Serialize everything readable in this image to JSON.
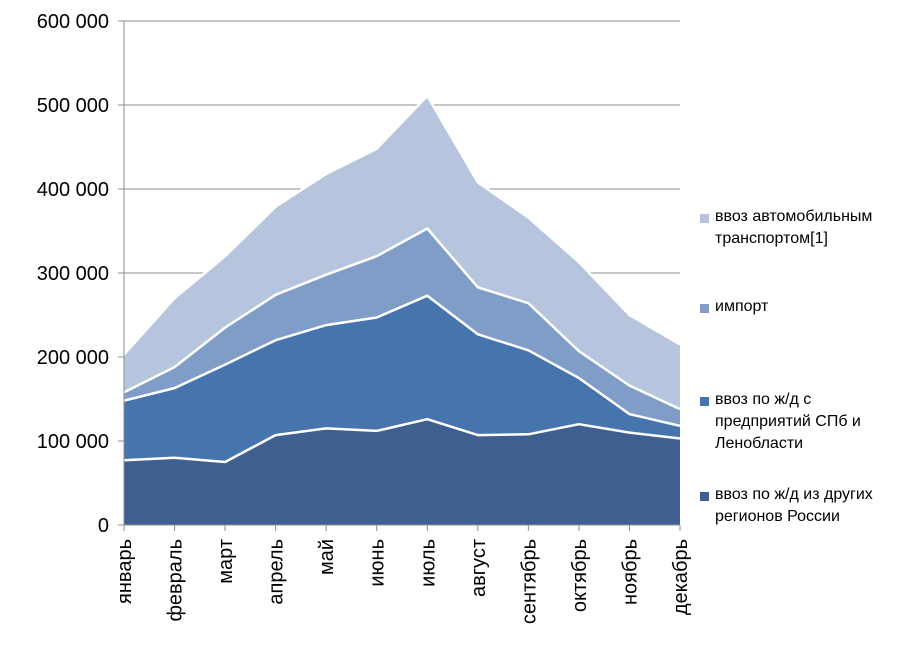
{
  "chart_data": {
    "type": "area",
    "stacked": true,
    "categories": [
      "январь",
      "февраль",
      "март",
      "апрель",
      "май",
      "июнь",
      "июль",
      "август",
      "сентябрь",
      "октябрь",
      "ноябрь",
      "декабрь"
    ],
    "ylim": [
      0,
      600000
    ],
    "yticks": [
      "0",
      "100 000",
      "200 000",
      "300 000",
      "400 000",
      "500 000",
      "600 000"
    ],
    "ytick_values": [
      0,
      100000,
      200000,
      300000,
      400000,
      500000,
      600000
    ],
    "grid": true,
    "legend_position": "right",
    "series": [
      {
        "name": "ввоз по ж/д из других регионов России",
        "color": "#3e5f8f",
        "values": [
          77000,
          80000,
          75000,
          107000,
          115000,
          112000,
          126000,
          107000,
          108000,
          120000,
          110000,
          103000
        ]
      },
      {
        "name": "ввоз по ж/д с предприятий СПб и Ленобласти",
        "color": "#4674ad",
        "values": [
          71000,
          83000,
          116000,
          113000,
          123000,
          135000,
          147000,
          120000,
          100000,
          55000,
          22000,
          15000
        ]
      },
      {
        "name": "импорт",
        "color": "#7f9dc6",
        "values": [
          10000,
          25000,
          44000,
          54000,
          60000,
          73000,
          80000,
          56000,
          56000,
          32000,
          34000,
          20000
        ]
      },
      {
        "name": "ввоз автомобильным транспортом[1]",
        "color": "#b7c4dd",
        "values": [
          45000,
          82000,
          85000,
          105000,
          120000,
          128000,
          158000,
          125000,
          102000,
          106000,
          84000,
          77000
        ]
      }
    ]
  }
}
